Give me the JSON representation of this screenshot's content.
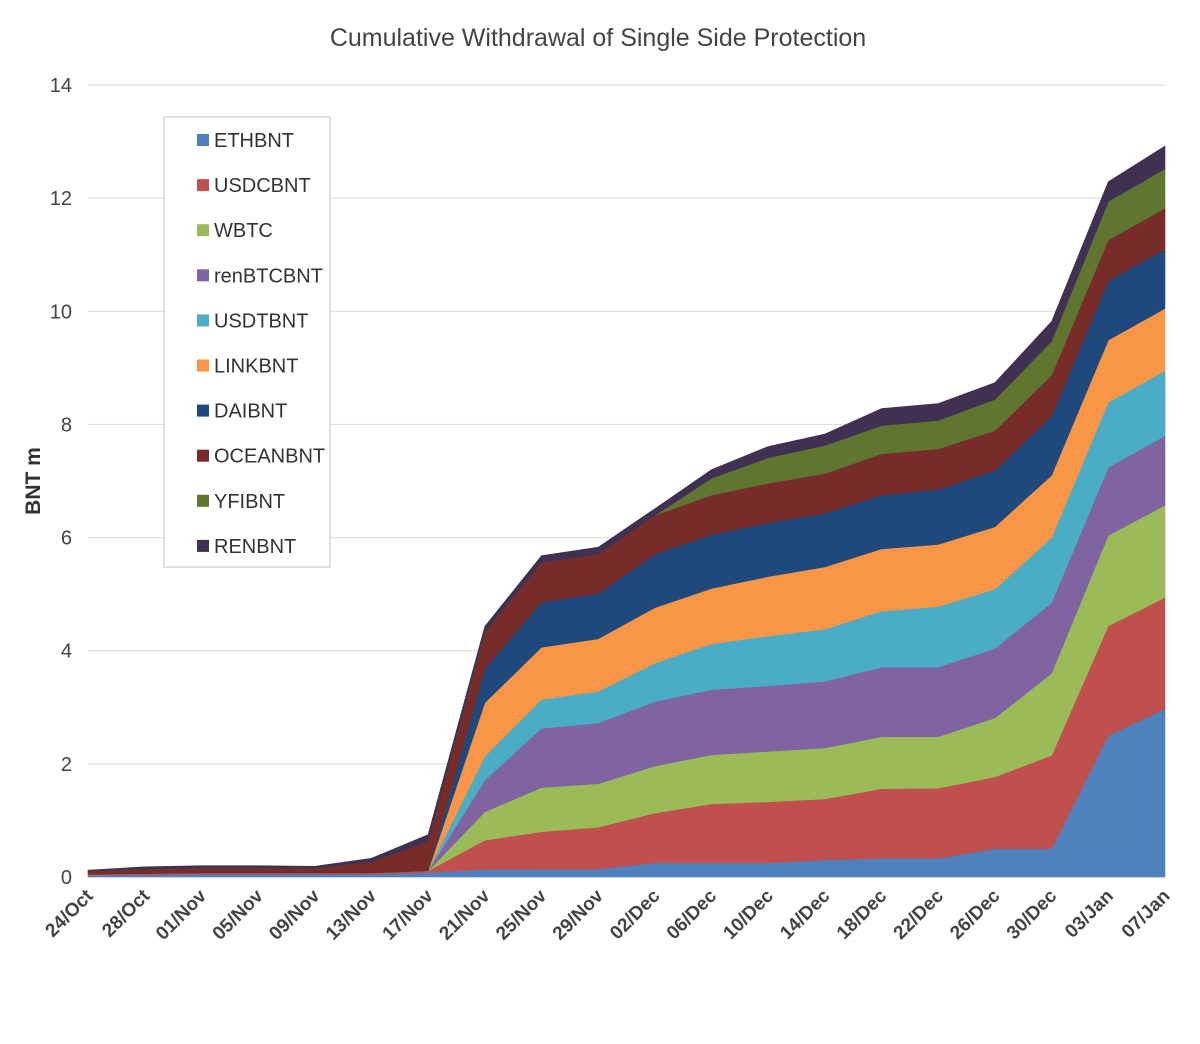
{
  "chart_data": {
    "type": "area",
    "stacked": true,
    "title": "Cumulative Withdrawal of Single Side Protection",
    "xlabel": "",
    "ylabel": "BNT m",
    "ylim": [
      0,
      14
    ],
    "yticks": [
      0,
      2,
      4,
      6,
      8,
      10,
      12,
      14
    ],
    "grid": true,
    "legend_position": "top-left",
    "categories": [
      "24/Oct",
      "28/Oct",
      "01/Nov",
      "05/Nov",
      "09/Nov",
      "13/Nov",
      "17/Nov",
      "21/Nov",
      "25/Nov",
      "29/Nov",
      "02/Dec",
      "06/Dec",
      "10/Dec",
      "14/Dec",
      "18/Dec",
      "22/Dec",
      "26/Dec",
      "30/Dec",
      "03/Jan",
      "07/Jan"
    ],
    "series": [
      {
        "name": "ETHBNT",
        "color": "#4f81bd",
        "values": [
          0.03,
          0.04,
          0.05,
          0.05,
          0.05,
          0.05,
          0.08,
          0.13,
          0.14,
          0.14,
          0.25,
          0.25,
          0.25,
          0.3,
          0.33,
          0.33,
          0.5,
          0.5,
          2.5,
          2.97
        ]
      },
      {
        "name": "USDCBNT",
        "color": "#c0504d",
        "values": [
          0.02,
          0.02,
          0.02,
          0.02,
          0.02,
          0.02,
          0.03,
          0.52,
          0.66,
          0.74,
          0.88,
          1.04,
          1.08,
          1.08,
          1.23,
          1.24,
          1.27,
          1.65,
          1.94,
          1.97
        ]
      },
      {
        "name": "WBTC",
        "color": "#9bbb59",
        "values": [
          0,
          0,
          0,
          0,
          0,
          0,
          0,
          0.5,
          0.78,
          0.77,
          0.83,
          0.87,
          0.89,
          0.9,
          0.92,
          0.91,
          1.04,
          1.45,
          1.6,
          1.63
        ]
      },
      {
        "name": "renBTCBNT",
        "color": "#8064a2",
        "values": [
          0,
          0,
          0,
          0,
          0,
          0,
          0,
          0.56,
          1.05,
          1.07,
          1.14,
          1.15,
          1.16,
          1.18,
          1.23,
          1.23,
          1.23,
          1.25,
          1.2,
          1.23
        ]
      },
      {
        "name": "USDTBNT",
        "color": "#4bacc6",
        "values": [
          0,
          0,
          0,
          0,
          0,
          0,
          0,
          0.42,
          0.51,
          0.56,
          0.68,
          0.81,
          0.88,
          0.92,
          0.99,
          1.07,
          1.05,
          1.15,
          1.15,
          1.15
        ]
      },
      {
        "name": "LINKBNT",
        "color": "#f79646",
        "values": [
          0,
          0,
          0,
          0,
          0,
          0,
          0,
          0.95,
          0.92,
          0.93,
          0.98,
          0.98,
          1.05,
          1.1,
          1.1,
          1.1,
          1.1,
          1.1,
          1.1,
          1.1
        ]
      },
      {
        "name": "DAIBNT",
        "color": "#1f497d",
        "values": [
          0,
          0,
          0,
          0,
          0,
          0,
          0,
          0.6,
          0.8,
          0.8,
          0.95,
          0.95,
          0.95,
          0.95,
          0.95,
          0.97,
          1.0,
          1.05,
          1.05,
          1.05
        ]
      },
      {
        "name": "OCEANBNT",
        "color": "#772c2a",
        "values": [
          0.05,
          0.08,
          0.09,
          0.09,
          0.08,
          0.2,
          0.52,
          0.65,
          0.7,
          0.7,
          0.68,
          0.7,
          0.7,
          0.7,
          0.73,
          0.72,
          0.7,
          0.72,
          0.72,
          0.72
        ]
      },
      {
        "name": "YFIBNT",
        "color": "#5f7530",
        "values": [
          0,
          0,
          0,
          0,
          0,
          0,
          0,
          0,
          0,
          0,
          0,
          0.3,
          0.45,
          0.5,
          0.5,
          0.5,
          0.55,
          0.6,
          0.68,
          0.7
        ]
      },
      {
        "name": "RENBNT",
        "color": "#403152",
        "values": [
          0.02,
          0.04,
          0.04,
          0.04,
          0.04,
          0.06,
          0.12,
          0.1,
          0.12,
          0.12,
          0.12,
          0.15,
          0.2,
          0.2,
          0.3,
          0.3,
          0.3,
          0.35,
          0.35,
          0.4
        ]
      }
    ]
  }
}
